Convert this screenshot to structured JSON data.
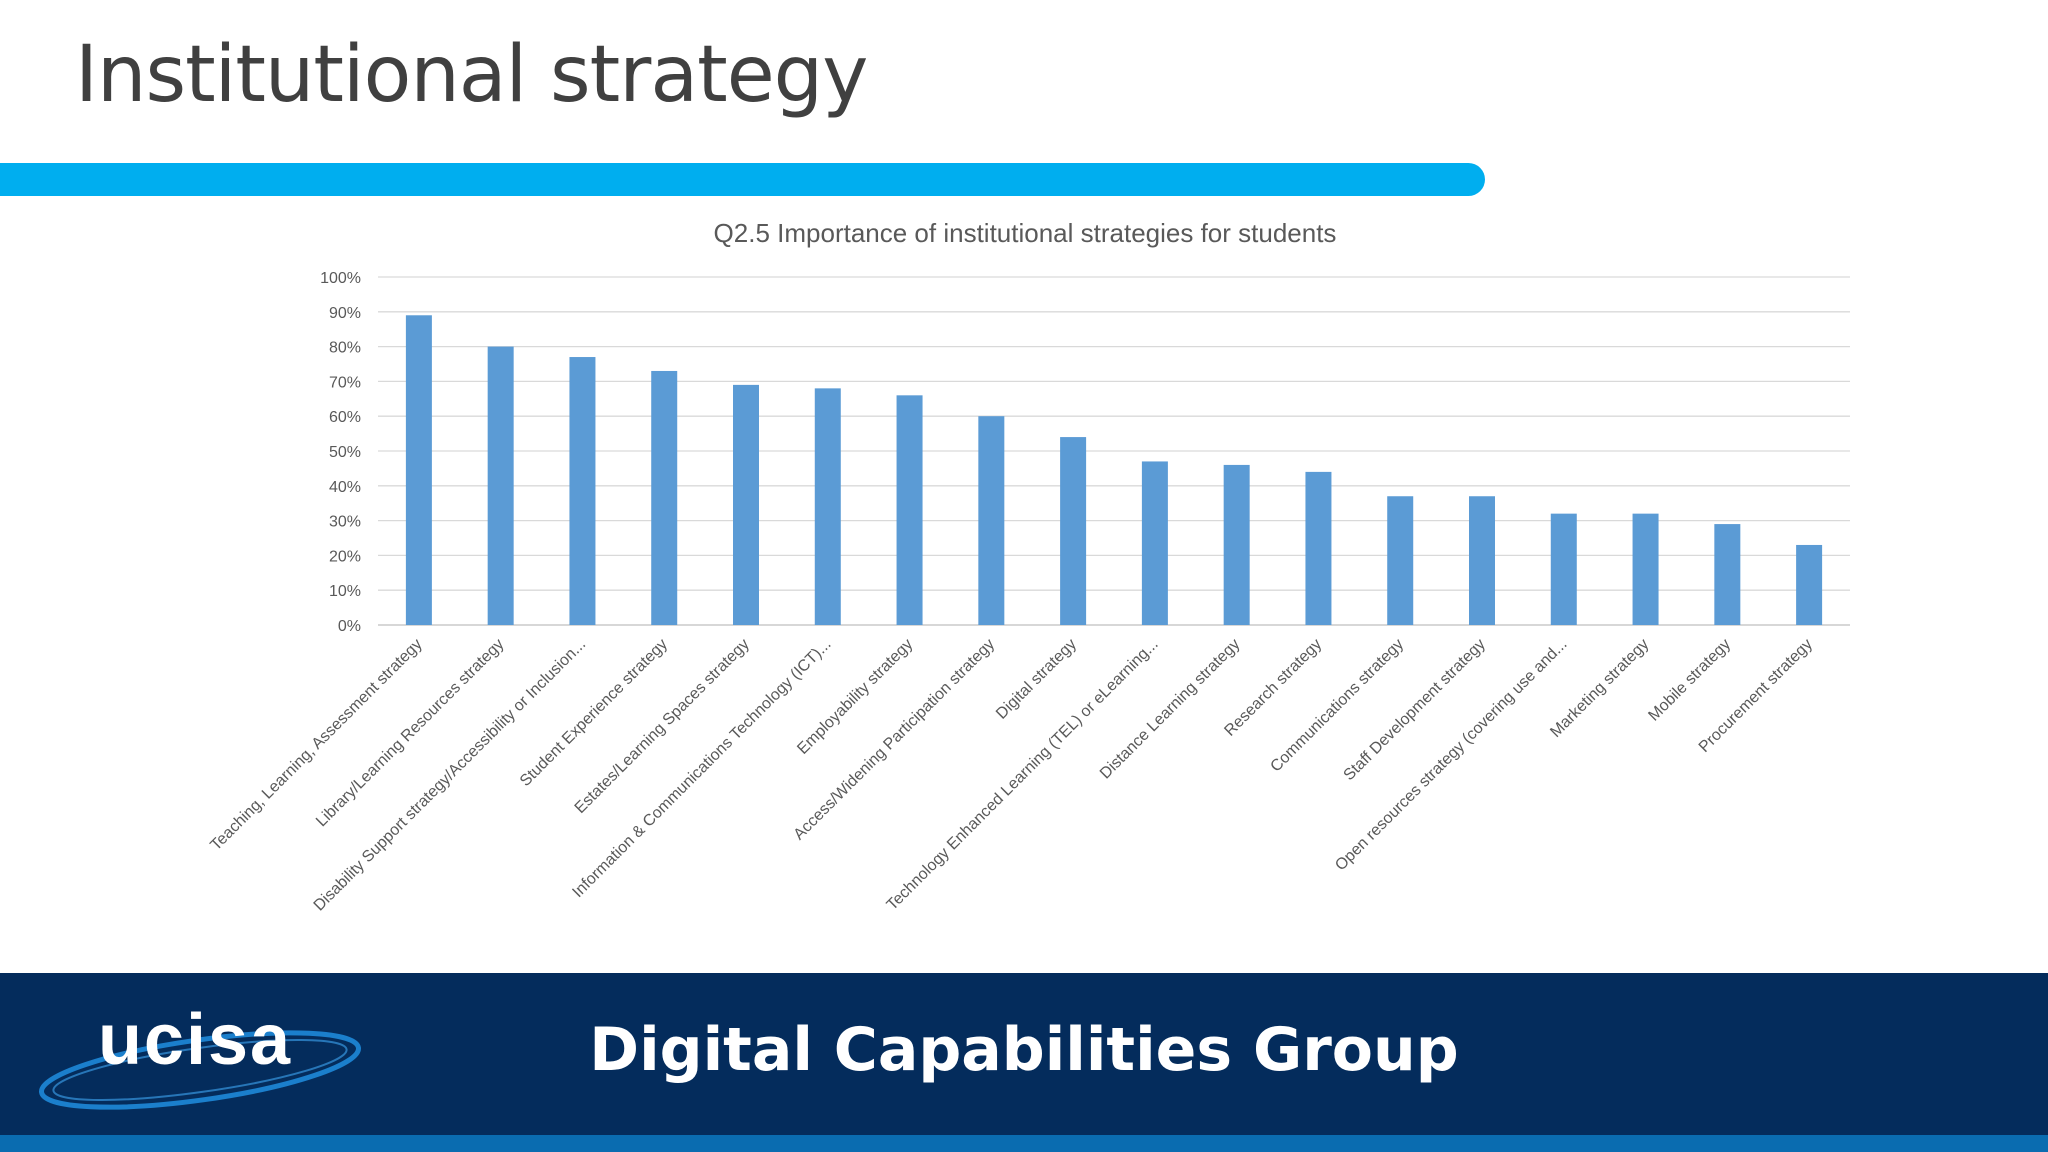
{
  "slide": {
    "title": "Institutional strategy",
    "footer_title": "Digital Capabilities Group",
    "logo_text": "ucisa"
  },
  "colors": {
    "accent_bar": "#00AEEF",
    "bar": "#5B9BD5",
    "footer_band": "#042C5C",
    "footer_stripe": "#0A6CB0",
    "title_text": "#404040"
  },
  "chart_data": {
    "type": "bar",
    "title": "Q2.5 Importance of institutional strategies for students",
    "xlabel": "",
    "ylabel": "",
    "ylim": [
      0,
      100
    ],
    "y_ticks": [
      "0%",
      "10%",
      "20%",
      "30%",
      "40%",
      "50%",
      "60%",
      "70%",
      "80%",
      "90%",
      "100%"
    ],
    "grid": true,
    "legend": "none",
    "categories": [
      "Teaching, Learning, Assessment strategy",
      "Library/Learning Resources strategy",
      "Disability Support strategy/Accessibility or Inclusion...",
      "Student Experience strategy",
      "Estates/Learning Spaces strategy",
      "Information & Communications Technology (ICT)...",
      "Employability strategy",
      "Access/Widening Participation strategy",
      "Digital strategy",
      "Technology Enhanced Learning (TEL) or eLearning...",
      "Distance Learning strategy",
      "Research strategy",
      "Communications strategy",
      "Staff Development strategy",
      "Open resources strategy (covering use and...",
      "Marketing strategy",
      "Mobile strategy",
      "Procurement strategy"
    ],
    "values": [
      89,
      80,
      77,
      73,
      69,
      68,
      66,
      60,
      54,
      47,
      46,
      44,
      37,
      37,
      32,
      32,
      29,
      23
    ]
  }
}
